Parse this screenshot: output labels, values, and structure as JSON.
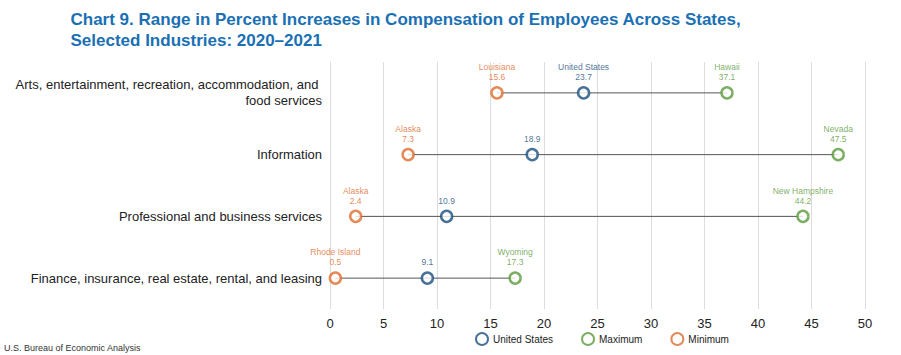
{
  "chart_data": {
    "type": "dumbbell",
    "title": "Chart 9. Range in Percent Increases in Compensation of Employees Across States, Selected Industries: 2020–2021",
    "orientation": "horizontal",
    "categories": [
      "Arts, entertainment, recreation, accommodation, and food services",
      "Information",
      "Professional and business services",
      "Finance, insurance, real estate, rental, and leasing"
    ],
    "series": [
      {
        "name": "United States",
        "color": "#1b4f80",
        "values": [
          23.7,
          18.9,
          10.9,
          9.1
        ],
        "annotations": [
          "United States",
          null,
          null,
          null
        ]
      },
      {
        "name": "Maximum",
        "color": "#5b9a3c",
        "values": [
          37.1,
          47.5,
          44.2,
          17.3
        ],
        "annotations": [
          "Hawaii",
          "Nevada",
          "New Hampshire",
          "Wyoming"
        ]
      },
      {
        "name": "Minimum",
        "color": "#dd6b2d",
        "values": [
          15.6,
          7.3,
          2.4,
          0.5
        ],
        "annotations": [
          "Louisiana",
          "Alaska",
          "Alaska",
          "Rhode Island"
        ]
      }
    ],
    "xlim": [
      0,
      50
    ],
    "xticks": [
      0,
      5,
      10,
      15,
      20,
      25,
      30,
      35,
      40,
      45,
      50
    ],
    "grid": true,
    "legend": "bottom",
    "data_labels": true,
    "marker": "circle",
    "source": "U.S. Bureau of Economic Analysis"
  }
}
